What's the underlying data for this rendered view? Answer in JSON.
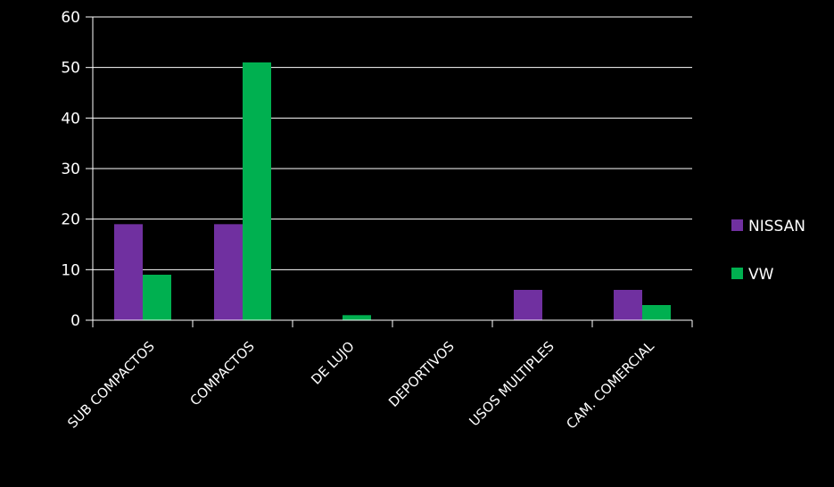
{
  "colors": {
    "background": "#000000",
    "axis": "#ffffff",
    "gridline": "#ffffff"
  },
  "chart_data": {
    "type": "bar",
    "categories": [
      "SUB COMPACTOS",
      "COMPACTOS",
      "DE LUJO",
      "DEPORTIVOS",
      "USOS MULTIPLES",
      "CAM. COMERCIAL"
    ],
    "series": [
      {
        "name": "NISSAN",
        "color": "#7030a0",
        "values": [
          19,
          19,
          0,
          0,
          6,
          6
        ]
      },
      {
        "name": "VW",
        "color": "#00b050",
        "values": [
          9,
          51,
          1,
          0,
          0,
          3
        ]
      }
    ],
    "yticks": [
      "0",
      "10",
      "20",
      "30",
      "40",
      "50",
      "60"
    ],
    "ylim": [
      0,
      60
    ],
    "grid": true,
    "legend_position": "right"
  }
}
